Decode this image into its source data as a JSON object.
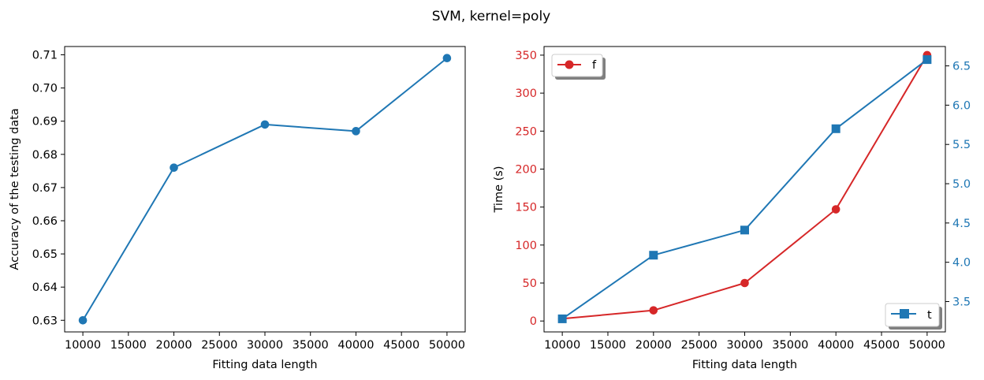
{
  "suptitle": "SVM, kernel=poly",
  "chart_data": [
    {
      "type": "line",
      "x": [
        10000,
        20000,
        30000,
        40000,
        50000
      ],
      "series": [
        {
          "values": [
            0.63,
            0.676,
            0.689,
            0.687,
            0.709
          ],
          "color": "#1f77b4",
          "marker": "circle"
        }
      ],
      "xlabel": "Fitting data length",
      "ylabel": "Accuracy of the testing data",
      "xlim": [
        8000,
        52000
      ],
      "ylim": [
        0.6265,
        0.7125
      ],
      "xticks": [
        10000,
        15000,
        20000,
        25000,
        30000,
        35000,
        40000,
        45000,
        50000
      ],
      "xtick_labels": [
        "10000",
        "15000",
        "20000",
        "25000",
        "30000",
        "35000",
        "40000",
        "45000",
        "50000"
      ],
      "yticks": [
        0.63,
        0.64,
        0.65,
        0.66,
        0.67,
        0.68,
        0.69,
        0.7,
        0.71
      ],
      "ytick_labels": [
        "0.63",
        "0.64",
        "0.65",
        "0.66",
        "0.67",
        "0.68",
        "0.69",
        "0.70",
        "0.71"
      ],
      "grid": false
    },
    {
      "type": "line",
      "dual_axis": true,
      "x": [
        10000,
        20000,
        30000,
        40000,
        50000
      ],
      "series": [
        {
          "name": "f",
          "axis": "left",
          "values": [
            3,
            14,
            50,
            147,
            350
          ],
          "color": "#d62728",
          "marker": "circle"
        },
        {
          "name": "t",
          "axis": "right",
          "values": [
            3.28,
            4.09,
            4.41,
            5.7,
            6.58
          ],
          "color": "#1f77b4",
          "marker": "square"
        }
      ],
      "xlabel": "Fitting data length",
      "ylabel": "Time (s)",
      "xlim": [
        8000,
        52000
      ],
      "ylim": [
        -14.35,
        361.35
      ],
      "y2lim": [
        3.1135,
        6.7465
      ],
      "xticks": [
        10000,
        15000,
        20000,
        25000,
        30000,
        35000,
        40000,
        45000,
        50000
      ],
      "xtick_labels": [
        "10000",
        "15000",
        "20000",
        "25000",
        "30000",
        "35000",
        "40000",
        "45000",
        "50000"
      ],
      "yticks": [
        0,
        50,
        100,
        150,
        200,
        250,
        300,
        350
      ],
      "ytick_labels": [
        "0",
        "50",
        "100",
        "150",
        "200",
        "250",
        "300",
        "350"
      ],
      "y2ticks": [
        3.5,
        4.0,
        4.5,
        5.0,
        5.5,
        6.0,
        6.5
      ],
      "y2tick_labels": [
        "3.5",
        "4.0",
        "4.5",
        "5.0",
        "5.5",
        "6.0",
        "6.5"
      ],
      "left_axis_color": "#d62728",
      "right_axis_color": "#1f77b4",
      "legend": [
        {
          "label": "f",
          "placement": "upper-left"
        },
        {
          "label": "t",
          "placement": "lower-right"
        }
      ],
      "grid": false
    }
  ]
}
